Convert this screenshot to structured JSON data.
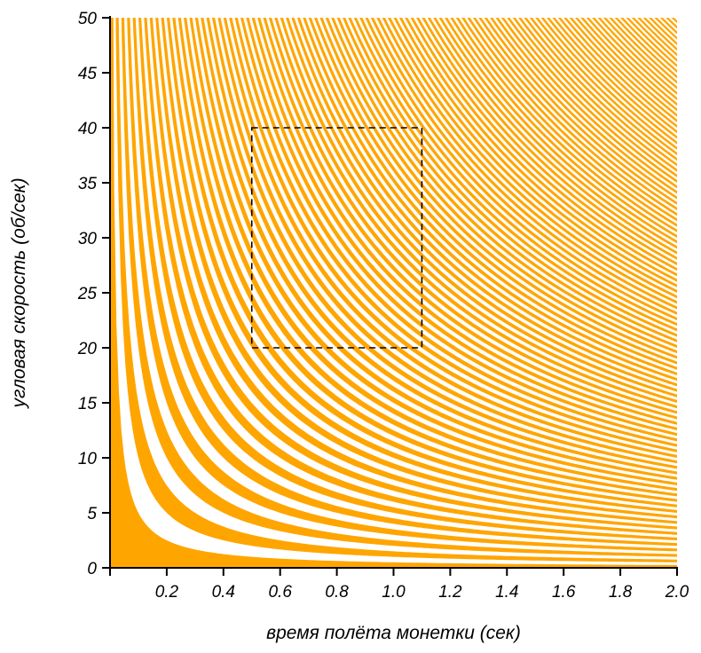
{
  "chart_data": {
    "type": "area",
    "title": "",
    "xlabel": "время полёта монетки (сек)",
    "ylabel": "угловая скорость (об/сек)",
    "xlim": [
      0,
      2.0
    ],
    "ylim": [
      0,
      50
    ],
    "x_ticks": [
      "",
      "0.2",
      "0.4",
      "0.6",
      "0.8",
      "1.0",
      "1.2",
      "1.4",
      "1.6",
      "1.8",
      "2.0"
    ],
    "x_tick_values": [
      0,
      0.2,
      0.4,
      0.6,
      0.8,
      1.0,
      1.2,
      1.4,
      1.6,
      1.8,
      2.0
    ],
    "y_ticks": [
      "0",
      "5",
      "10",
      "15",
      "20",
      "25",
      "30",
      "35",
      "40",
      "45",
      "50"
    ],
    "y_tick_values": [
      0,
      5,
      10,
      15,
      20,
      25,
      30,
      35,
      40,
      45,
      50
    ],
    "band_fill_color": "#FFA500",
    "bands": "filled regions where (angular speed × flight time) lies in [n, n+0.5) full turns, n = 0, 1, 2, … ; band boundaries are hyperbolas ω = k / t",
    "band_boundaries_turns_step": 0.5,
    "highlight_box": {
      "x_range": [
        0.5,
        1.1
      ],
      "y_range": [
        20,
        40
      ],
      "style": "dashed"
    }
  }
}
